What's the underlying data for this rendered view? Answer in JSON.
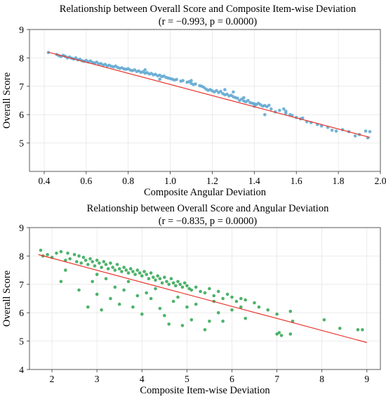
{
  "chart_data": [
    {
      "type": "scatter",
      "title": "Relationship between Overall Score and Composite Item-wise Deviation",
      "subtitle": "(r = −0.993, p = 0.0000)",
      "xlabel": "Composite Angular Deviation",
      "ylabel": "Overall Score",
      "xlim": [
        0.33,
        2.0
      ],
      "ylim": [
        4.0,
        9.0
      ],
      "xticks": [
        "0.4",
        "0.6",
        "0.8",
        "1.0",
        "1.2",
        "1.4",
        "1.6",
        "1.8",
        "2.0"
      ],
      "yticks": [
        "5",
        "6",
        "7",
        "8",
        "9"
      ],
      "grid": true,
      "point_color": "#5aa5cf",
      "line_color": "#e8332a",
      "regression": {
        "x": [
          0.42,
          1.95
        ],
        "y": [
          8.2,
          5.2
        ]
      },
      "series": [
        {
          "points": [
            [
              0.42,
              8.19
            ],
            [
              0.46,
              8.12
            ],
            [
              0.47,
              8.08
            ],
            [
              0.48,
              8.05
            ],
            [
              0.49,
              8.09
            ],
            [
              0.5,
              8.06
            ],
            [
              0.51,
              8.0
            ],
            [
              0.52,
              8.03
            ],
            [
              0.53,
              7.99
            ],
            [
              0.54,
              7.96
            ],
            [
              0.55,
              8.0
            ],
            [
              0.56,
              7.93
            ],
            [
              0.57,
              7.95
            ],
            [
              0.58,
              7.9
            ],
            [
              0.59,
              7.88
            ],
            [
              0.6,
              7.91
            ],
            [
              0.61,
              7.86
            ],
            [
              0.62,
              7.89
            ],
            [
              0.63,
              7.84
            ],
            [
              0.64,
              7.82
            ],
            [
              0.65,
              7.85
            ],
            [
              0.66,
              7.79
            ],
            [
              0.67,
              7.8
            ],
            [
              0.68,
              7.75
            ],
            [
              0.69,
              7.77
            ],
            [
              0.7,
              7.72
            ],
            [
              0.71,
              7.74
            ],
            [
              0.72,
              7.7
            ],
            [
              0.73,
              7.68
            ],
            [
              0.74,
              7.71
            ],
            [
              0.75,
              7.66
            ],
            [
              0.76,
              7.63
            ],
            [
              0.77,
              7.65
            ],
            [
              0.78,
              7.61
            ],
            [
              0.79,
              7.6
            ],
            [
              0.8,
              7.62
            ],
            [
              0.81,
              7.57
            ],
            [
              0.82,
              7.55
            ],
            [
              0.83,
              7.58
            ],
            [
              0.84,
              7.52
            ],
            [
              0.85,
              7.54
            ],
            [
              0.86,
              7.49
            ],
            [
              0.87,
              7.51
            ],
            [
              0.88,
              7.46
            ],
            [
              0.89,
              7.48
            ],
            [
              0.9,
              7.43
            ],
            [
              0.91,
              7.45
            ],
            [
              0.92,
              7.4
            ],
            [
              0.93,
              7.42
            ],
            [
              0.94,
              7.37
            ],
            [
              0.95,
              7.39
            ],
            [
              0.96,
              7.34
            ],
            [
              0.97,
              7.36
            ],
            [
              0.98,
              7.31
            ],
            [
              0.99,
              7.29
            ],
            [
              1.0,
              7.27
            ],
            [
              1.01,
              7.25
            ],
            [
              1.02,
              7.22
            ],
            [
              1.03,
              7.24
            ],
            [
              1.05,
              7.18
            ],
            [
              1.06,
              7.2
            ],
            [
              1.08,
              7.14
            ],
            [
              1.09,
              7.16
            ],
            [
              1.1,
              7.1
            ],
            [
              1.11,
              7.06
            ],
            [
              1.12,
              7.08
            ],
            [
              1.14,
              7.02
            ],
            [
              1.15,
              7.0
            ],
            [
              1.16,
              6.96
            ],
            [
              1.17,
              6.9
            ],
            [
              1.18,
              6.86
            ],
            [
              1.19,
              6.88
            ],
            [
              1.2,
              6.84
            ],
            [
              1.21,
              6.8
            ],
            [
              1.22,
              6.85
            ],
            [
              1.23,
              6.78
            ],
            [
              1.24,
              6.82
            ],
            [
              1.25,
              6.74
            ],
            [
              1.26,
              6.7
            ],
            [
              1.27,
              6.72
            ],
            [
              1.28,
              6.66
            ],
            [
              1.29,
              6.68
            ],
            [
              1.3,
              6.63
            ],
            [
              1.31,
              6.6
            ],
            [
              1.32,
              6.58
            ],
            [
              1.33,
              6.5
            ],
            [
              1.34,
              6.55
            ],
            [
              1.35,
              6.48
            ],
            [
              1.36,
              6.45
            ],
            [
              1.37,
              6.5
            ],
            [
              1.38,
              6.42
            ],
            [
              1.39,
              6.4
            ],
            [
              1.4,
              6.38
            ],
            [
              1.41,
              6.36
            ],
            [
              1.42,
              6.4
            ],
            [
              1.43,
              6.35
            ],
            [
              1.44,
              6.3
            ],
            [
              1.45,
              6.32
            ],
            [
              1.46,
              6.28
            ],
            [
              1.47,
              6.33
            ],
            [
              1.48,
              6.2
            ],
            [
              1.5,
              6.1
            ],
            [
              1.52,
              6.15
            ],
            [
              1.54,
              6.2
            ],
            [
              1.55,
              6.12
            ],
            [
              1.57,
              6.0
            ],
            [
              1.58,
              5.97
            ],
            [
              1.6,
              5.9
            ],
            [
              1.62,
              5.85
            ],
            [
              1.63,
              5.88
            ],
            [
              1.65,
              5.75
            ],
            [
              1.67,
              5.72
            ],
            [
              1.7,
              5.65
            ],
            [
              1.72,
              5.6
            ],
            [
              1.75,
              5.55
            ],
            [
              1.77,
              5.45
            ],
            [
              1.79,
              5.42
            ],
            [
              1.82,
              5.47
            ],
            [
              1.85,
              5.4
            ],
            [
              1.88,
              5.25
            ],
            [
              1.9,
              5.3
            ],
            [
              1.93,
              5.42
            ],
            [
              1.95,
              5.4
            ],
            [
              1.94,
              5.18
            ],
            [
              1.26,
              6.88
            ],
            [
              1.1,
              7.2
            ],
            [
              0.95,
              7.25
            ],
            [
              0.88,
              7.58
            ],
            [
              1.3,
              6.8
            ],
            [
              1.4,
              6.3
            ],
            [
              1.35,
              6.6
            ],
            [
              1.45,
              6.0
            ],
            [
              1.55,
              6.05
            ]
          ]
        }
      ]
    },
    {
      "type": "scatter",
      "title": "Relationship between Overall Score and Angular Deviation",
      "subtitle": "(r = −0.835, p = 0.0000)",
      "xlabel": "Composite Item-wise Deviation",
      "ylabel": "Overall Score",
      "xlim": [
        1.5,
        9.3
      ],
      "ylim": [
        4.0,
        9.0
      ],
      "xticks": [
        "2",
        "3",
        "4",
        "5",
        "6",
        "7",
        "8",
        "9"
      ],
      "yticks": [
        "4",
        "5",
        "6",
        "7",
        "8",
        "9"
      ],
      "grid": true,
      "point_color": "#2ea44f",
      "line_color": "#e8332a",
      "regression": {
        "x": [
          1.7,
          9.0
        ],
        "y": [
          8.05,
          4.95
        ]
      },
      "series": [
        {
          "points": [
            [
              1.75,
              8.2
            ],
            [
              1.8,
              8.0
            ],
            [
              1.9,
              8.05
            ],
            [
              2.0,
              7.95
            ],
            [
              2.1,
              8.1
            ],
            [
              2.2,
              8.15
            ],
            [
              2.3,
              7.85
            ],
            [
              2.35,
              8.1
            ],
            [
              2.4,
              7.9
            ],
            [
              2.5,
              8.05
            ],
            [
              2.55,
              7.8
            ],
            [
              2.6,
              8.0
            ],
            [
              2.65,
              7.75
            ],
            [
              2.7,
              7.95
            ],
            [
              2.75,
              7.85
            ],
            [
              2.8,
              7.7
            ],
            [
              2.85,
              7.9
            ],
            [
              2.9,
              7.8
            ],
            [
              2.95,
              7.65
            ],
            [
              3.0,
              7.85
            ],
            [
              3.05,
              7.75
            ],
            [
              3.1,
              7.6
            ],
            [
              3.15,
              7.8
            ],
            [
              3.2,
              7.7
            ],
            [
              3.25,
              7.55
            ],
            [
              3.3,
              7.75
            ],
            [
              3.35,
              7.6
            ],
            [
              3.4,
              7.5
            ],
            [
              3.45,
              7.7
            ],
            [
              3.5,
              7.55
            ],
            [
              3.55,
              7.45
            ],
            [
              3.6,
              7.6
            ],
            [
              3.65,
              7.5
            ],
            [
              3.7,
              7.4
            ],
            [
              3.75,
              7.55
            ],
            [
              3.8,
              7.45
            ],
            [
              3.85,
              7.35
            ],
            [
              3.9,
              7.5
            ],
            [
              3.95,
              7.4
            ],
            [
              4.0,
              7.3
            ],
            [
              4.05,
              7.45
            ],
            [
              4.1,
              7.35
            ],
            [
              4.15,
              7.2
            ],
            [
              4.2,
              7.4
            ],
            [
              4.25,
              7.25
            ],
            [
              4.3,
              7.15
            ],
            [
              4.35,
              7.3
            ],
            [
              4.4,
              7.2
            ],
            [
              4.45,
              7.05
            ],
            [
              4.5,
              7.25
            ],
            [
              4.55,
              7.1
            ],
            [
              4.6,
              7.0
            ],
            [
              4.65,
              7.2
            ],
            [
              4.7,
              7.05
            ],
            [
              4.75,
              6.95
            ],
            [
              4.8,
              7.1
            ],
            [
              4.85,
              7.0
            ],
            [
              4.9,
              6.9
            ],
            [
              4.95,
              7.05
            ],
            [
              5.0,
              6.95
            ],
            [
              5.05,
              6.85
            ],
            [
              5.1,
              6.8
            ],
            [
              5.2,
              6.9
            ],
            [
              5.3,
              6.75
            ],
            [
              5.4,
              6.7
            ],
            [
              5.5,
              6.85
            ],
            [
              5.6,
              6.6
            ],
            [
              5.7,
              6.75
            ],
            [
              5.8,
              6.5
            ],
            [
              5.9,
              6.65
            ],
            [
              6.0,
              6.55
            ],
            [
              6.1,
              6.4
            ],
            [
              6.2,
              6.5
            ],
            [
              6.3,
              6.45
            ],
            [
              6.5,
              6.35
            ],
            [
              6.6,
              6.2
            ],
            [
              6.8,
              6.1
            ],
            [
              7.0,
              5.95
            ],
            [
              7.3,
              6.05
            ],
            [
              7.35,
              5.7
            ],
            [
              7.05,
              5.3
            ],
            [
              7.1,
              5.2
            ],
            [
              7.0,
              5.25
            ],
            [
              7.3,
              5.25
            ],
            [
              8.05,
              5.75
            ],
            [
              8.4,
              5.45
            ],
            [
              8.8,
              5.4
            ],
            [
              8.9,
              5.4
            ],
            [
              2.2,
              7.1
            ],
            [
              2.3,
              7.5
            ],
            [
              2.6,
              6.8
            ],
            [
              2.9,
              7.1
            ],
            [
              3.0,
              6.65
            ],
            [
              3.1,
              6.1
            ],
            [
              3.3,
              6.5
            ],
            [
              3.4,
              6.9
            ],
            [
              3.5,
              6.3
            ],
            [
              3.6,
              6.8
            ],
            [
              3.8,
              6.2
            ],
            [
              3.9,
              6.6
            ],
            [
              4.0,
              5.95
            ],
            [
              4.2,
              6.5
            ],
            [
              4.4,
              6.15
            ],
            [
              4.5,
              5.9
            ],
            [
              4.7,
              6.4
            ],
            [
              4.9,
              5.55
            ],
            [
              5.0,
              6.2
            ],
            [
              5.2,
              6.3
            ],
            [
              5.4,
              5.4
            ],
            [
              5.5,
              5.7
            ],
            [
              5.7,
              6.0
            ],
            [
              5.8,
              5.7
            ],
            [
              6.0,
              6.1
            ],
            [
              6.2,
              6.2
            ],
            [
              6.3,
              5.8
            ],
            [
              4.6,
              5.6
            ],
            [
              5.1,
              5.75
            ],
            [
              3.2,
              7.2
            ],
            [
              3.7,
              7.1
            ],
            [
              4.1,
              6.7
            ],
            [
              4.8,
              6.55
            ],
            [
              5.6,
              6.4
            ],
            [
              2.8,
              6.2
            ],
            [
              3.0,
              7.35
            ],
            [
              4.3,
              6.85
            ]
          ]
        }
      ]
    }
  ]
}
